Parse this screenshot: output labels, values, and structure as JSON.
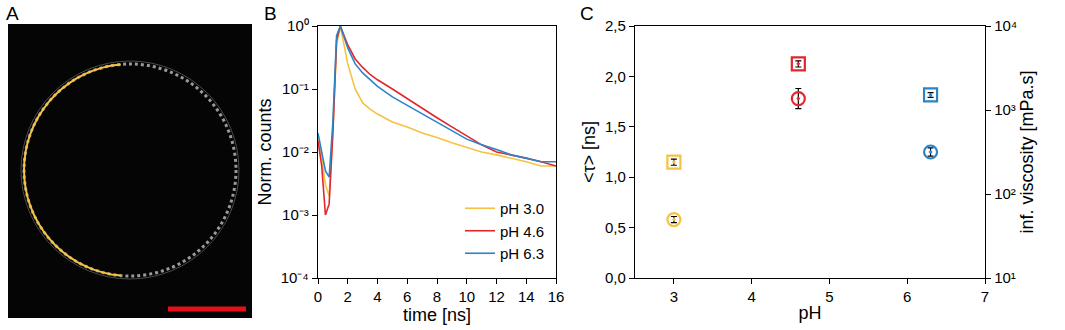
{
  "chart_data": [
    {
      "type": "image",
      "panel": "A"
    },
    {
      "type": "line",
      "panel": "B",
      "x_label": "time [ns]",
      "y_label": "Norm. counts",
      "x": [
        0,
        0.25,
        0.5,
        0.75,
        1,
        1.25,
        1.5,
        2,
        2.5,
        3,
        3.5,
        4,
        5,
        6,
        7,
        8,
        9,
        10,
        11,
        12,
        13,
        14,
        15,
        16
      ],
      "series": [
        {
          "name": "pH 3.0",
          "color": "#f5c242",
          "values": [
            0.018,
            0.008,
            0.003,
            0.002,
            0.02,
            0.5,
            1,
            0.25,
            0.1,
            0.06,
            0.048,
            0.04,
            0.03,
            0.025,
            0.02,
            0.017,
            0.014,
            0.012,
            0.01,
            0.009,
            0.008,
            0.007,
            0.006,
            0.006
          ]
        },
        {
          "name": "pH 4.6",
          "color": "#e3262e",
          "values": [
            0.015,
            0.006,
            0.001,
            0.0015,
            0.02,
            0.6,
            1,
            0.5,
            0.3,
            0.22,
            0.17,
            0.14,
            0.1,
            0.07,
            0.05,
            0.035,
            0.025,
            0.018,
            0.013,
            0.01,
            0.009,
            0.008,
            0.007,
            0.006
          ]
        },
        {
          "name": "pH 6.3",
          "color": "#2b84c6",
          "values": [
            0.02,
            0.01,
            0.005,
            0.004,
            0.03,
            0.7,
            1,
            0.45,
            0.25,
            0.18,
            0.14,
            0.11,
            0.075,
            0.055,
            0.04,
            0.03,
            0.022,
            0.016,
            0.013,
            0.011,
            0.009,
            0.008,
            0.007,
            0.007
          ]
        }
      ],
      "xlim": [
        0,
        16
      ],
      "xticks": [
        0,
        2,
        4,
        6,
        8,
        10,
        12,
        14,
        16
      ],
      "ylim": [
        0.0001,
        1
      ],
      "yticks": [
        {
          "value": 0.0001,
          "label": "10⁻⁴"
        },
        {
          "value": 0.001,
          "label": "10⁻³"
        },
        {
          "value": 0.01,
          "label": "10⁻²"
        },
        {
          "value": 0.1,
          "label": "10⁻¹"
        },
        {
          "value": 1,
          "label": "10⁰"
        }
      ],
      "log": "y",
      "grid": false,
      "legend": "lower right"
    },
    {
      "type": "scatter",
      "panel": "C",
      "x_label": "pH",
      "y_label": "<τ> [ns]",
      "y2_label": "inf. viscosity [mPa.s]",
      "x": [
        3.0,
        4.6,
        6.3
      ],
      "series": [
        {
          "name": "<τ>",
          "marker": "circle-open-dot",
          "colors": [
            "#f5c242",
            "#e3262e",
            "#2b84c6"
          ],
          "values": [
            0.58,
            1.78,
            1.25
          ],
          "errors": [
            0.03,
            0.1,
            0.04
          ]
        },
        {
          "name": "inf.viscosity",
          "marker": "square-open-dot",
          "axis": "y2",
          "colors": [
            "#f5c242",
            "#e3262e",
            "#2b84c6"
          ],
          "values": [
            240,
            3550,
            1510
          ],
          "errors": [
            20,
            300,
            100
          ]
        }
      ],
      "xlim": [
        2.5,
        7
      ],
      "xticks": [
        3,
        4,
        5,
        6,
        7
      ],
      "ylim": [
        0,
        2.5
      ],
      "yticks": [
        {
          "value": 0,
          "label": "0,0"
        },
        {
          "value": 0.5,
          "label": "0,5"
        },
        {
          "value": 1,
          "label": "1,0"
        },
        {
          "value": 1.5,
          "label": "1,5"
        },
        {
          "value": 2,
          "label": "2,0"
        },
        {
          "value": 2.5,
          "label": "2,5"
        }
      ],
      "y2lim": [
        10,
        10000
      ],
      "y2ticks": [
        {
          "value": 10,
          "label": "10¹"
        },
        {
          "value": 100,
          "label": "10²"
        },
        {
          "value": 1000,
          "label": "10³"
        },
        {
          "value": 10000,
          "label": "10⁴"
        }
      ],
      "log": "y2",
      "grid": false,
      "legend": "lower right"
    }
  ]
}
